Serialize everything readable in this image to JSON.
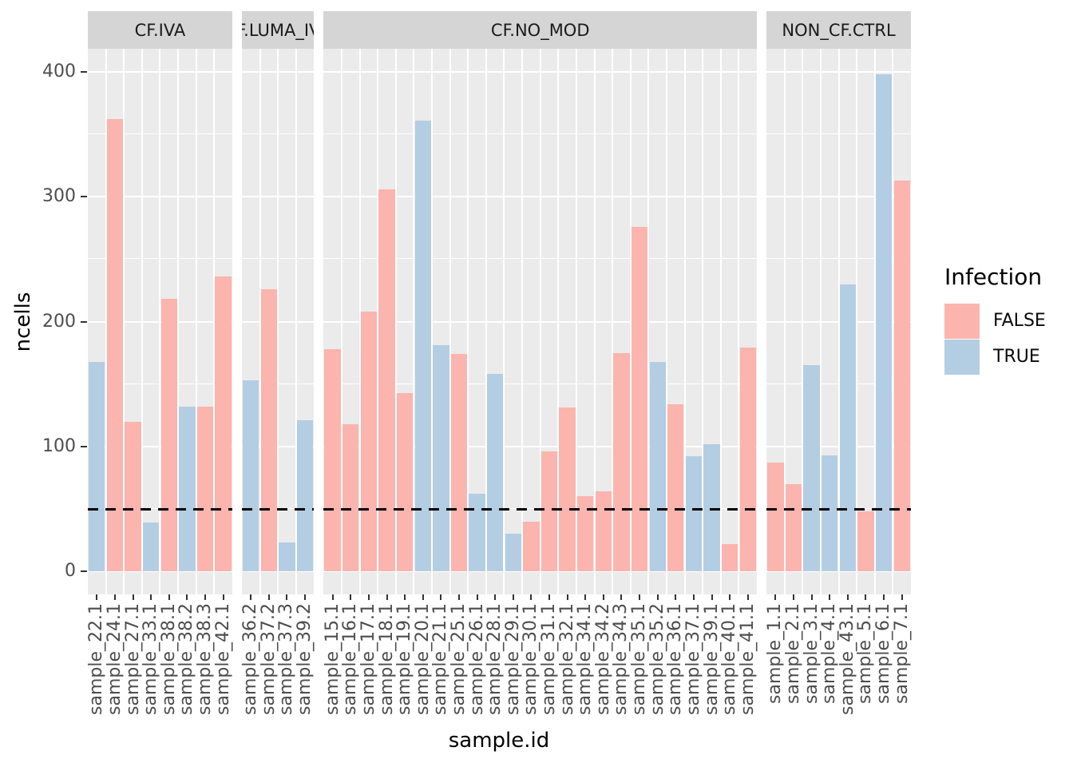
{
  "chart_data": {
    "type": "bar",
    "xlabel": "sample.id",
    "ylabel": "ncells",
    "ylim": [
      0,
      400
    ],
    "yticks": [
      0,
      100,
      200,
      300,
      400
    ],
    "grid": true,
    "hline": {
      "value": 50,
      "style": "dashed",
      "color": "#000000"
    },
    "legend": {
      "title": "Infection",
      "position": "right",
      "entries": [
        {
          "label": "FALSE",
          "color": "#FBB4AE"
        },
        {
          "label": "TRUE",
          "color": "#B3CDE3"
        }
      ]
    },
    "colors": {
      "panel_background": "#EBEBEB",
      "strip_background": "#D5D5D5",
      "gridline": "#FFFFFF",
      "axis_text": "#4D4D4D"
    },
    "facets": [
      {
        "label": "CF.IVA",
        "bars": [
          {
            "sample": "sample_22.1",
            "infection": "TRUE",
            "ncells": 168
          },
          {
            "sample": "sample_24.1",
            "infection": "FALSE",
            "ncells": 362
          },
          {
            "sample": "sample_27.1",
            "infection": "FALSE",
            "ncells": 120
          },
          {
            "sample": "sample_33.1",
            "infection": "TRUE",
            "ncells": 39
          },
          {
            "sample": "sample_38.1",
            "infection": "FALSE",
            "ncells": 218
          },
          {
            "sample": "sample_38.2",
            "infection": "TRUE",
            "ncells": 132
          },
          {
            "sample": "sample_38.3",
            "infection": "FALSE",
            "ncells": 132
          },
          {
            "sample": "sample_42.1",
            "infection": "FALSE",
            "ncells": 236
          }
        ]
      },
      {
        "label": "CF.LUMA_IVA",
        "bars": [
          {
            "sample": "sample_36.2",
            "infection": "TRUE",
            "ncells": 153
          },
          {
            "sample": "sample_37.2",
            "infection": "FALSE",
            "ncells": 226
          },
          {
            "sample": "sample_37.3",
            "infection": "TRUE",
            "ncells": 23
          },
          {
            "sample": "sample_39.2",
            "infection": "TRUE",
            "ncells": 121
          }
        ]
      },
      {
        "label": "CF.NO_MOD",
        "bars": [
          {
            "sample": "sample_15.1",
            "infection": "FALSE",
            "ncells": 178
          },
          {
            "sample": "sample_16.1",
            "infection": "FALSE",
            "ncells": 118
          },
          {
            "sample": "sample_17.1",
            "infection": "FALSE",
            "ncells": 208
          },
          {
            "sample": "sample_18.1",
            "infection": "FALSE",
            "ncells": 306
          },
          {
            "sample": "sample_19.1",
            "infection": "FALSE",
            "ncells": 143
          },
          {
            "sample": "sample_20.1",
            "infection": "TRUE",
            "ncells": 361
          },
          {
            "sample": "sample_21.1",
            "infection": "TRUE",
            "ncells": 181
          },
          {
            "sample": "sample_25.1",
            "infection": "FALSE",
            "ncells": 174
          },
          {
            "sample": "sample_26.1",
            "infection": "TRUE",
            "ncells": 62
          },
          {
            "sample": "sample_28.1",
            "infection": "TRUE",
            "ncells": 158
          },
          {
            "sample": "sample_29.1",
            "infection": "TRUE",
            "ncells": 30
          },
          {
            "sample": "sample_30.1",
            "infection": "FALSE",
            "ncells": 40
          },
          {
            "sample": "sample_31.1",
            "infection": "FALSE",
            "ncells": 96
          },
          {
            "sample": "sample_32.1",
            "infection": "FALSE",
            "ncells": 131
          },
          {
            "sample": "sample_34.1",
            "infection": "FALSE",
            "ncells": 60
          },
          {
            "sample": "sample_34.2",
            "infection": "FALSE",
            "ncells": 64
          },
          {
            "sample": "sample_34.3",
            "infection": "FALSE",
            "ncells": 175
          },
          {
            "sample": "sample_35.1",
            "infection": "FALSE",
            "ncells": 276
          },
          {
            "sample": "sample_35.2",
            "infection": "TRUE",
            "ncells": 168
          },
          {
            "sample": "sample_36.1",
            "infection": "FALSE",
            "ncells": 134
          },
          {
            "sample": "sample_37.1",
            "infection": "TRUE",
            "ncells": 92
          },
          {
            "sample": "sample_39.1",
            "infection": "TRUE",
            "ncells": 102
          },
          {
            "sample": "sample_40.1",
            "infection": "FALSE",
            "ncells": 22
          },
          {
            "sample": "sample_41.1",
            "infection": "FALSE",
            "ncells": 179
          }
        ]
      },
      {
        "label": "NON_CF.CTRL",
        "bars": [
          {
            "sample": "sample_1.1",
            "infection": "FALSE",
            "ncells": 87
          },
          {
            "sample": "sample_2.1",
            "infection": "FALSE",
            "ncells": 70
          },
          {
            "sample": "sample_3.1",
            "infection": "TRUE",
            "ncells": 165
          },
          {
            "sample": "sample_4.1",
            "infection": "TRUE",
            "ncells": 93
          },
          {
            "sample": "sample_43.1",
            "infection": "TRUE",
            "ncells": 230
          },
          {
            "sample": "sample_5.1",
            "infection": "FALSE",
            "ncells": 48
          },
          {
            "sample": "sample_6.1",
            "infection": "TRUE",
            "ncells": 398
          },
          {
            "sample": "sample_7.1",
            "infection": "FALSE",
            "ncells": 313
          }
        ]
      }
    ]
  }
}
